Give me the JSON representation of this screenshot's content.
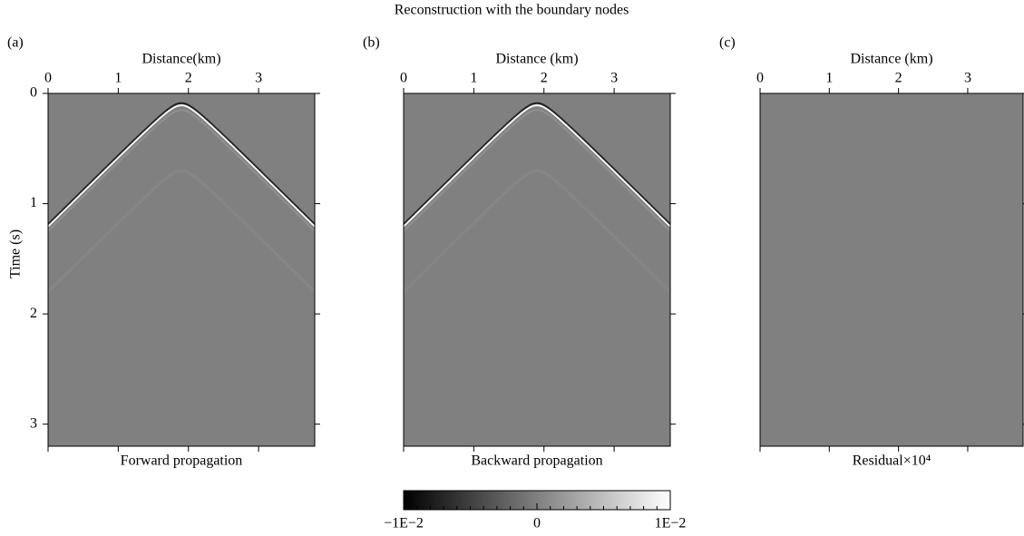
{
  "title": "Reconstruction with the boundary nodes",
  "chart_data": [
    {
      "type": "image",
      "label": "(a)",
      "xlabel": "Distance(km)",
      "ylabel": "Time (s)",
      "caption": "Forward propagation",
      "xlim": [
        0,
        3.8
      ],
      "ylim": [
        3.2,
        0
      ],
      "xticks": [
        0,
        1,
        2,
        3
      ],
      "yticks": [
        0,
        1,
        2,
        3
      ]
    },
    {
      "type": "image",
      "label": "(b)",
      "xlabel": "Distance (km)",
      "caption": "Backward propagation",
      "xlim": [
        0,
        3.8
      ],
      "ylim": [
        3.2,
        0
      ],
      "xticks": [
        0,
        1,
        2,
        3
      ]
    },
    {
      "type": "image",
      "label": "(c)",
      "xlabel": "Distance (km)",
      "caption": "Residual×10⁴",
      "xlim": [
        0,
        3.8
      ],
      "ylim": [
        3.2,
        0
      ],
      "xticks": [
        0,
        1,
        2,
        3
      ]
    }
  ],
  "colorbar": {
    "lim": [
      -0.01,
      0.01
    ],
    "ticks": [
      {
        "value": -0.01,
        "label": "−1E−2"
      },
      0,
      {
        "value": 0.01,
        "label": "1E−2"
      }
    ]
  }
}
